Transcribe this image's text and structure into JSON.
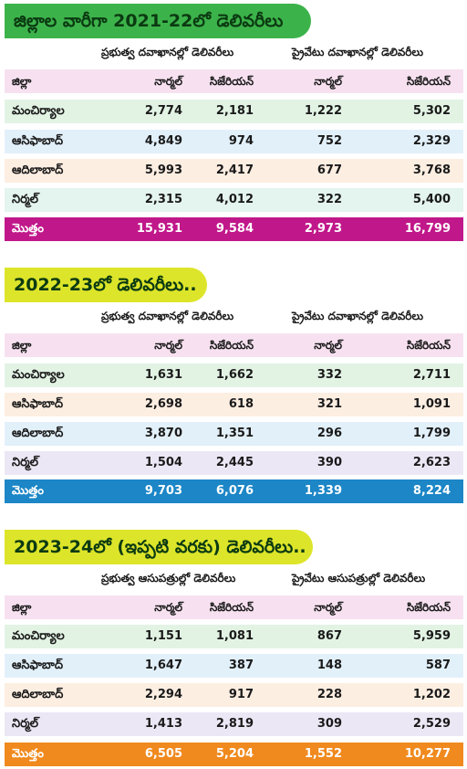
{
  "colors": {
    "banner_green": "#3cb34a",
    "banner_yellow": "#dde52a",
    "total_2021_22": "#c0188a",
    "total_2022_23": "#1c86c6",
    "total_2023_24": "#f08a1e"
  },
  "chart_data": [
    {
      "type": "table",
      "title": "జిల్లాల వారీగా 2021-22లో డెలివరీలు",
      "group_headers": [
        "ప్రభుత్వ దవాఖానల్లో డెలివరీలు",
        "ప్రైవేటు దవాఖానల్లో డెలివరీలు"
      ],
      "columns": [
        "జిల్లా",
        "నార్మల్",
        "సిజేరియన్",
        "నార్మల్",
        "సిజేరియన్"
      ],
      "rows": [
        [
          "మంచిర్యాల",
          "2,774",
          "2,181",
          "1,222",
          "5,302"
        ],
        [
          "ఆసిఫాబాద్",
          "4,849",
          "974",
          "752",
          "2,329"
        ],
        [
          "ఆదిలాబాద్",
          "5,993",
          "2,417",
          "677",
          "3,768"
        ],
        [
          "నిర్మల్",
          "2,315",
          "4,012",
          "322",
          "5,400"
        ]
      ],
      "total": [
        "మొత్తం",
        "15,931",
        "9,584",
        "2,973",
        "16,799"
      ]
    },
    {
      "type": "table",
      "title": "2022-23లో డెలివరీలు..",
      "group_headers": [
        "ప్రభుత్వ దవాఖానల్లో డెలివరీలు",
        "ప్రైవేటు దవాఖానల్లో డెలివరీలు"
      ],
      "columns": [
        "జిల్లా",
        "నార్మల్",
        "సిజేరియన్",
        "నార్మల్",
        "సిజేరియన్"
      ],
      "rows": [
        [
          "మంచిర్యాల",
          "1,631",
          "1,662",
          "332",
          "2,711"
        ],
        [
          "ఆసిఫాబాద్",
          "2,698",
          "618",
          "321",
          "1,091"
        ],
        [
          "ఆదిలాబాద్",
          "3,870",
          "1,351",
          "296",
          "1,799"
        ],
        [
          "నిర్మల్",
          "1,504",
          "2,445",
          "390",
          "2,623"
        ]
      ],
      "total": [
        "మొత్తం",
        "9,703",
        "6,076",
        "1,339",
        "8,224"
      ]
    },
    {
      "type": "table",
      "title": "2023-24లో (ఇప్పటి వరకు) డెలివరీలు..",
      "group_headers": [
        "ప్రభుత్వ ఆసుపత్రుల్లో డెలివరీలు",
        "ప్రైవేటు ఆసుపత్రుల్లో డెలివరీలు"
      ],
      "columns": [
        "జిల్లా",
        "నార్మల్",
        "సిజేరియన్",
        "నార్మల్",
        "సిజేరియన్"
      ],
      "rows": [
        [
          "మంచిర్యాల",
          "1,151",
          "1,081",
          "867",
          "5,959"
        ],
        [
          "ఆసిఫాబాద్",
          "1,647",
          "387",
          "148",
          "587"
        ],
        [
          "ఆదిలాబాద్",
          "2,294",
          "917",
          "228",
          "1,202"
        ],
        [
          "నిర్మల్",
          "1,413",
          "2,819",
          "309",
          "2,529"
        ]
      ],
      "total": [
        "మొత్తం",
        "6,505",
        "5,204",
        "1,552",
        "10,277"
      ]
    }
  ]
}
